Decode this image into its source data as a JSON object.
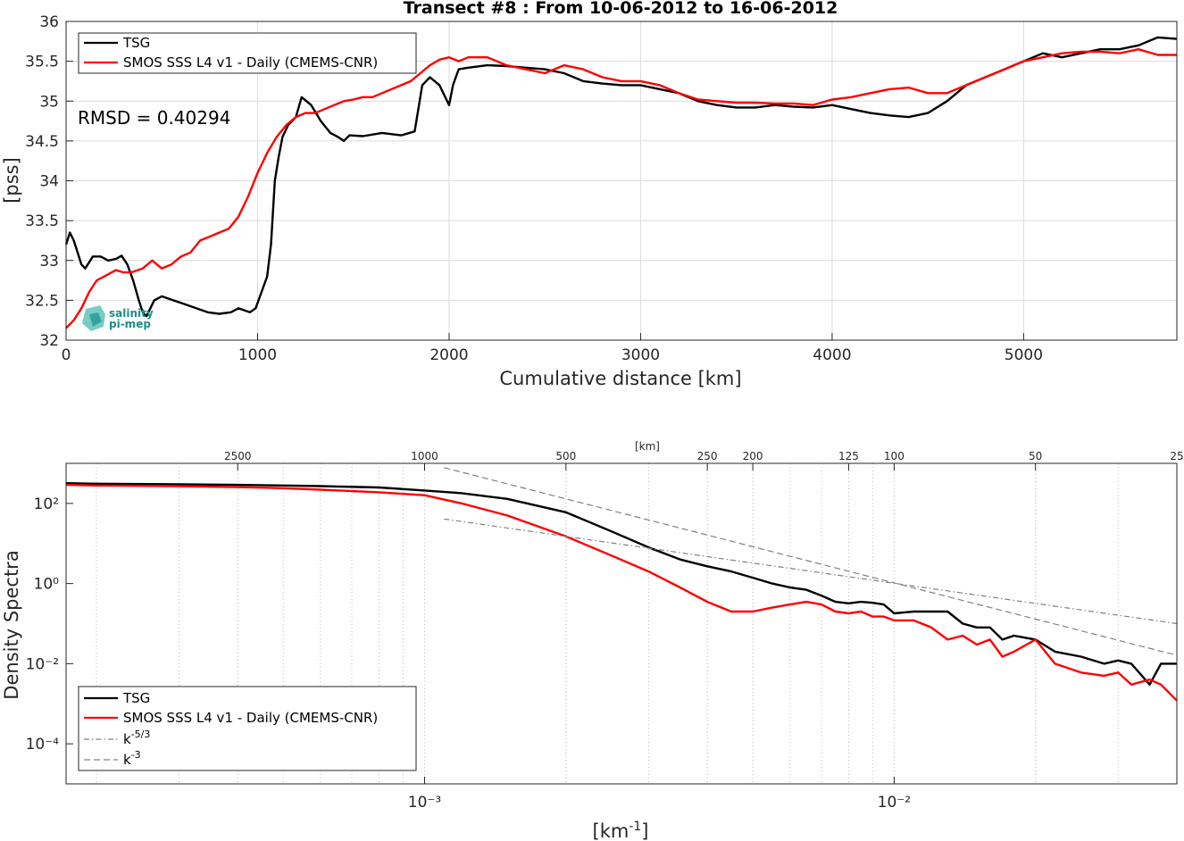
{
  "chart_data": [
    {
      "type": "line",
      "title": "Transect #8 : From 10-06-2012 to 16-06-2012",
      "xlabel": "Cumulative distance [km]",
      "ylabel": "[pss]",
      "xlim": [
        0,
        5800
      ],
      "ylim": [
        32,
        36
      ],
      "xticks": [
        0,
        1000,
        2000,
        3000,
        4000,
        5000
      ],
      "yticks": [
        32,
        32.5,
        33,
        33.5,
        34,
        34.5,
        35,
        35.5,
        36
      ],
      "ytick_labels": [
        "32",
        "32.5",
        "33",
        "33.5",
        "34",
        "34.5",
        "35",
        "35.5",
        "36"
      ],
      "legend_position": "top-left",
      "annotation": "RMSD = 0.40294",
      "series": [
        {
          "name": "TSG",
          "color": "#000000",
          "x": [
            0,
            20,
            40,
            60,
            80,
            100,
            140,
            180,
            220,
            260,
            290,
            320,
            350,
            380,
            400,
            420,
            440,
            460,
            500,
            560,
            620,
            680,
            740,
            800,
            860,
            900,
            960,
            990,
            1020,
            1050,
            1070,
            1090,
            1110,
            1130,
            1160,
            1200,
            1230,
            1280,
            1330,
            1380,
            1420,
            1450,
            1480,
            1550,
            1650,
            1750,
            1820,
            1860,
            1880,
            1900,
            1950,
            1990,
            2000,
            2020,
            2050,
            2100,
            2200,
            2300,
            2400,
            2500,
            2600,
            2700,
            2800,
            2900,
            3000,
            3100,
            3200,
            3300,
            3400,
            3500,
            3600,
            3700,
            3800,
            3900,
            4000,
            4100,
            4200,
            4300,
            4400,
            4500,
            4600,
            4700,
            4800,
            4900,
            5000,
            5100,
            5200,
            5300,
            5400,
            5500,
            5600,
            5700,
            5800
          ],
          "y": [
            33.2,
            33.35,
            33.25,
            33.1,
            32.95,
            32.9,
            33.05,
            33.05,
            33.0,
            33.02,
            33.06,
            32.95,
            32.75,
            32.5,
            32.35,
            32.3,
            32.4,
            32.5,
            32.55,
            32.5,
            32.45,
            32.4,
            32.35,
            32.33,
            32.35,
            32.4,
            32.35,
            32.4,
            32.6,
            32.8,
            33.2,
            34.0,
            34.3,
            34.55,
            34.7,
            34.8,
            35.05,
            34.95,
            34.75,
            34.6,
            34.55,
            34.5,
            34.57,
            34.56,
            34.6,
            34.57,
            34.62,
            35.2,
            35.25,
            35.3,
            35.2,
            35.0,
            34.95,
            35.2,
            35.4,
            35.42,
            35.45,
            35.44,
            35.42,
            35.4,
            35.35,
            35.25,
            35.22,
            35.2,
            35.2,
            35.15,
            35.1,
            35.0,
            34.95,
            34.92,
            34.92,
            34.95,
            34.93,
            34.92,
            34.95,
            34.9,
            34.85,
            34.82,
            34.8,
            34.85,
            35.0,
            35.2,
            35.3,
            35.4,
            35.5,
            35.6,
            35.55,
            35.6,
            35.65,
            35.65,
            35.7,
            35.8,
            35.78
          ]
        },
        {
          "name": "SMOS SSS L4 v1 - Daily (CMEMS-CNR)",
          "color": "#ff0000",
          "x": [
            0,
            40,
            80,
            120,
            160,
            200,
            260,
            300,
            340,
            400,
            450,
            500,
            550,
            600,
            650,
            700,
            750,
            800,
            850,
            900,
            950,
            1000,
            1050,
            1100,
            1150,
            1200,
            1250,
            1300,
            1350,
            1400,
            1450,
            1500,
            1550,
            1600,
            1650,
            1700,
            1750,
            1800,
            1850,
            1900,
            1950,
            2000,
            2050,
            2100,
            2150,
            2200,
            2300,
            2400,
            2500,
            2600,
            2700,
            2800,
            2900,
            3000,
            3100,
            3200,
            3300,
            3400,
            3500,
            3600,
            3700,
            3800,
            3900,
            4000,
            4100,
            4200,
            4300,
            4400,
            4500,
            4600,
            4700,
            4800,
            4900,
            5000,
            5100,
            5200,
            5300,
            5400,
            5500,
            5600,
            5700,
            5800
          ],
          "y": [
            32.15,
            32.25,
            32.4,
            32.6,
            32.75,
            32.8,
            32.88,
            32.85,
            32.85,
            32.9,
            33.0,
            32.9,
            32.95,
            33.05,
            33.1,
            33.25,
            33.3,
            33.35,
            33.4,
            33.55,
            33.8,
            34.1,
            34.35,
            34.55,
            34.7,
            34.8,
            34.85,
            34.85,
            34.9,
            34.95,
            35.0,
            35.02,
            35.05,
            35.05,
            35.1,
            35.15,
            35.2,
            35.25,
            35.35,
            35.45,
            35.52,
            35.55,
            35.5,
            35.55,
            35.55,
            35.55,
            35.45,
            35.4,
            35.35,
            35.45,
            35.4,
            35.3,
            35.25,
            35.25,
            35.2,
            35.1,
            35.02,
            35.0,
            34.98,
            34.98,
            34.97,
            34.97,
            34.95,
            35.02,
            35.05,
            35.1,
            35.15,
            35.17,
            35.1,
            35.1,
            35.2,
            35.3,
            35.4,
            35.5,
            35.55,
            35.6,
            35.62,
            35.62,
            35.6,
            35.65,
            35.58,
            35.58
          ]
        }
      ]
    },
    {
      "type": "line",
      "xlabel": "[km⁻¹]",
      "ylabel": "Density Spectra",
      "xscale": "log",
      "yscale": "log",
      "xlim": [
        0.0001724,
        0.04
      ],
      "ylim": [
        1e-05,
        1000
      ],
      "xticks": [
        0.001,
        0.01
      ],
      "xtick_labels": [
        "10⁻³",
        "10⁻²"
      ],
      "yticks": [
        0.0001,
        0.01,
        1,
        100
      ],
      "ytick_labels": [
        "10⁻⁴",
        "10⁻²",
        "10⁰",
        "10²"
      ],
      "top_axis_label": "[km]",
      "top_axis_ticks": [
        2500,
        1000,
        500,
        250,
        200,
        125,
        100,
        50,
        25
      ],
      "legend_position": "bottom-left",
      "series": [
        {
          "name": "TSG",
          "color": "#000000",
          "x": [
            0.0001724,
            0.0002,
            0.0003,
            0.0004,
            0.0005,
            0.0006,
            0.0008,
            0.001,
            0.0012,
            0.0015,
            0.002,
            0.0025,
            0.003,
            0.0035,
            0.004,
            0.0045,
            0.005,
            0.0055,
            0.006,
            0.0065,
            0.007,
            0.0075,
            0.008,
            0.0085,
            0.009,
            0.0095,
            0.01,
            0.011,
            0.012,
            0.013,
            0.014,
            0.015,
            0.016,
            0.017,
            0.018,
            0.02,
            0.022,
            0.025,
            0.028,
            0.03,
            0.032,
            0.035,
            0.037,
            0.04
          ],
          "y": [
            320,
            310,
            300,
            290,
            280,
            270,
            250,
            210,
            180,
            130,
            60,
            20,
            8,
            4,
            2.7,
            2.0,
            1.4,
            1.0,
            0.8,
            0.7,
            0.5,
            0.35,
            0.32,
            0.35,
            0.33,
            0.3,
            0.18,
            0.2,
            0.2,
            0.2,
            0.1,
            0.08,
            0.08,
            0.04,
            0.05,
            0.04,
            0.02,
            0.015,
            0.01,
            0.012,
            0.01,
            0.003,
            0.01,
            0.01
          ]
        },
        {
          "name": "SMOS SSS L4 v1 - Daily (CMEMS-CNR)",
          "color": "#ff0000",
          "x": [
            0.0001724,
            0.0002,
            0.0003,
            0.0004,
            0.0005,
            0.0006,
            0.0008,
            0.001,
            0.0012,
            0.0015,
            0.002,
            0.0025,
            0.003,
            0.0035,
            0.004,
            0.0045,
            0.005,
            0.0055,
            0.006,
            0.0065,
            0.007,
            0.0075,
            0.008,
            0.0085,
            0.009,
            0.0095,
            0.01,
            0.011,
            0.012,
            0.013,
            0.014,
            0.015,
            0.016,
            0.017,
            0.018,
            0.02,
            0.022,
            0.025,
            0.028,
            0.03,
            0.032,
            0.035,
            0.037,
            0.04
          ],
          "y": [
            290,
            280,
            270,
            255,
            240,
            220,
            190,
            160,
            100,
            50,
            15,
            5,
            2.0,
            0.8,
            0.35,
            0.2,
            0.2,
            0.25,
            0.3,
            0.35,
            0.3,
            0.2,
            0.18,
            0.2,
            0.15,
            0.15,
            0.12,
            0.12,
            0.08,
            0.04,
            0.05,
            0.03,
            0.04,
            0.015,
            0.02,
            0.04,
            0.01,
            0.006,
            0.005,
            0.006,
            0.003,
            0.004,
            0.003,
            0.0012
          ]
        },
        {
          "name": "k⁻⁵ᐟ³",
          "color": "#808080",
          "x": [
            0.0011,
            0.04
          ],
          "y": [
            40.8,
            0.1
          ]
        },
        {
          "name": "k⁻³",
          "color": "#808080",
          "x": [
            0.0011,
            0.04
          ],
          "y": [
            781,
            0.0162
          ]
        }
      ]
    }
  ],
  "legend1": {
    "tsg": "TSG",
    "smos": "SMOS SSS L4 v1 - Daily (CMEMS-CNR)"
  },
  "legend2": {
    "tsg": "TSG",
    "smos": "SMOS SSS L4 v1 - Daily (CMEMS-CNR)",
    "k53_base": "k",
    "k53_exp": "-5/3",
    "k3_base": "k",
    "k3_exp": "-3"
  },
  "logo": {
    "line1": "salinity",
    "line2": "pi-mep"
  },
  "colors": {
    "tsg": "#000000",
    "smos": "#ff0000",
    "reference": "#808080",
    "logo": "#1c8d88"
  }
}
